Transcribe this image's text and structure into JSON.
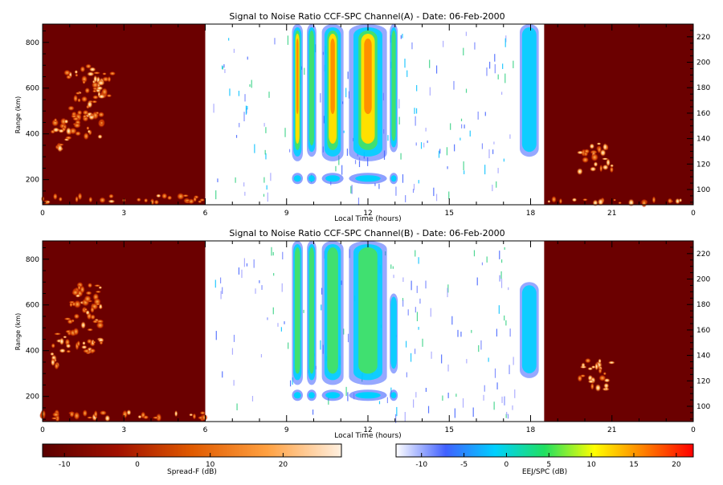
{
  "panels": [
    {
      "title": "Signal to Noise Ratio CCF-SPC Channel(A) - Date: 06-Feb-2000",
      "xlabel": "Local Time (hours)",
      "ylabel": "Range (km)",
      "x_ticks": [
        "0",
        "3",
        "6",
        "9",
        "12",
        "15",
        "18",
        "21",
        "0"
      ],
      "y_ticks": [
        "200",
        "400",
        "600",
        "800"
      ],
      "y2_ticks": [
        "100",
        "120",
        "140",
        "160",
        "180",
        "200",
        "220"
      ]
    },
    {
      "title": "Signal to Noise Ratio CCF-SPC Channel(B) - Date: 06-Feb-2000",
      "xlabel": "Local Time (hours)",
      "ylabel": "Range (km)",
      "x_ticks": [
        "0",
        "3",
        "6",
        "9",
        "12",
        "15",
        "18",
        "21",
        "0"
      ],
      "y_ticks": [
        "200",
        "400",
        "600",
        "800"
      ],
      "y2_ticks": [
        "100",
        "120",
        "140",
        "160",
        "180",
        "200",
        "220"
      ]
    }
  ],
  "colorbars": [
    {
      "label": "Spread-F (dB)",
      "ticks": [
        "-10",
        "0",
        "10",
        "20"
      ],
      "colors": [
        "#5a0000",
        "#a01000",
        "#e05a00",
        "#ffa040",
        "#fff0e0"
      ]
    },
    {
      "label": "EEJ/SPC (dB)",
      "ticks": [
        "-10",
        "-5",
        "0",
        "5",
        "10",
        "15",
        "20"
      ],
      "colors": [
        "#ffffff",
        "#4060ff",
        "#00d0ff",
        "#20e060",
        "#ffff00",
        "#ff8000",
        "#ff0000"
      ]
    }
  ],
  "chart_data": [
    {
      "type": "heatmap",
      "title": "Signal to Noise Ratio CCF-SPC Channel(A) - Date: 06-Feb-2000",
      "xlabel": "Local Time (hours)",
      "ylabel": "Range (km)",
      "xlim": [
        0,
        24
      ],
      "ylim": [
        90,
        880
      ],
      "y2lim": [
        88,
        230
      ],
      "spread_f_regions": [
        {
          "x": [
            0,
            6
          ],
          "background_db": -13
        },
        {
          "x": [
            18.5,
            24
          ],
          "background_db": -13
        }
      ],
      "spread_f_echoes": [
        {
          "x": [
            0.3,
            1.0
          ],
          "y": [
            330,
            480
          ],
          "snr_db": 20
        },
        {
          "x": [
            0.9,
            2.2
          ],
          "y": [
            380,
            700
          ],
          "snr_db": 12
        },
        {
          "x": [
            2.0,
            2.6
          ],
          "y": [
            550,
            680
          ],
          "snr_db": 12
        },
        {
          "x": [
            19.8,
            21.0
          ],
          "y": [
            230,
            360
          ],
          "snr_db": 20
        },
        {
          "x": [
            0,
            6
          ],
          "y": [
            100,
            130
          ],
          "snr_db": 15
        },
        {
          "x": [
            18.5,
            24
          ],
          "y": [
            95,
            115
          ],
          "snr_db": 10
        }
      ],
      "eej_echoes": [
        {
          "x": [
            9.2,
            9.6
          ],
          "y": [
            280,
            880
          ],
          "peak_db": 10
        },
        {
          "x": [
            9.75,
            10.1
          ],
          "y": [
            300,
            880
          ],
          "peak_db": 7
        },
        {
          "x": [
            10.3,
            11.1
          ],
          "y": [
            280,
            880
          ],
          "peak_db": 15
        },
        {
          "x": [
            11.3,
            12.7
          ],
          "y": [
            280,
            880
          ],
          "peak_db": 14
        },
        {
          "x": [
            12.8,
            13.1
          ],
          "y": [
            320,
            880
          ],
          "peak_db": 7
        },
        {
          "x": [
            17.6,
            18.3
          ],
          "y": [
            300,
            880
          ],
          "peak_db": -4
        }
      ]
    },
    {
      "type": "heatmap",
      "title": "Signal to Noise Ratio CCF-SPC Channel(B) - Date: 06-Feb-2000",
      "xlabel": "Local Time (hours)",
      "ylabel": "Range (km)",
      "xlim": [
        0,
        24
      ],
      "ylim": [
        90,
        880
      ],
      "y2lim": [
        88,
        230
      ],
      "spread_f_regions": [
        {
          "x": [
            0,
            6
          ],
          "background_db": -13
        },
        {
          "x": [
            18.5,
            24
          ],
          "background_db": -13
        }
      ],
      "spread_f_echoes": [
        {
          "x": [
            0.3,
            1.0
          ],
          "y": [
            330,
            480
          ],
          "snr_db": 20
        },
        {
          "x": [
            0.9,
            2.2
          ],
          "y": [
            380,
            700
          ],
          "snr_db": 12
        },
        {
          "x": [
            19.8,
            21.0
          ],
          "y": [
            230,
            360
          ],
          "snr_db": 20
        },
        {
          "x": [
            0,
            6
          ],
          "y": [
            100,
            130
          ],
          "snr_db": 15
        }
      ],
      "eej_echoes": [
        {
          "x": [
            9.2,
            9.6
          ],
          "y": [
            250,
            880
          ],
          "peak_db": 5
        },
        {
          "x": [
            9.75,
            10.1
          ],
          "y": [
            250,
            880
          ],
          "peak_db": 4
        },
        {
          "x": [
            10.3,
            11.1
          ],
          "y": [
            250,
            880
          ],
          "peak_db": 6
        },
        {
          "x": [
            11.3,
            12.7
          ],
          "y": [
            250,
            880
          ],
          "peak_db": 7
        },
        {
          "x": [
            12.8,
            13.1
          ],
          "y": [
            300,
            650
          ],
          "peak_db": 2
        },
        {
          "x": [
            17.6,
            18.3
          ],
          "y": [
            280,
            700
          ],
          "peak_db": -3
        }
      ]
    }
  ]
}
